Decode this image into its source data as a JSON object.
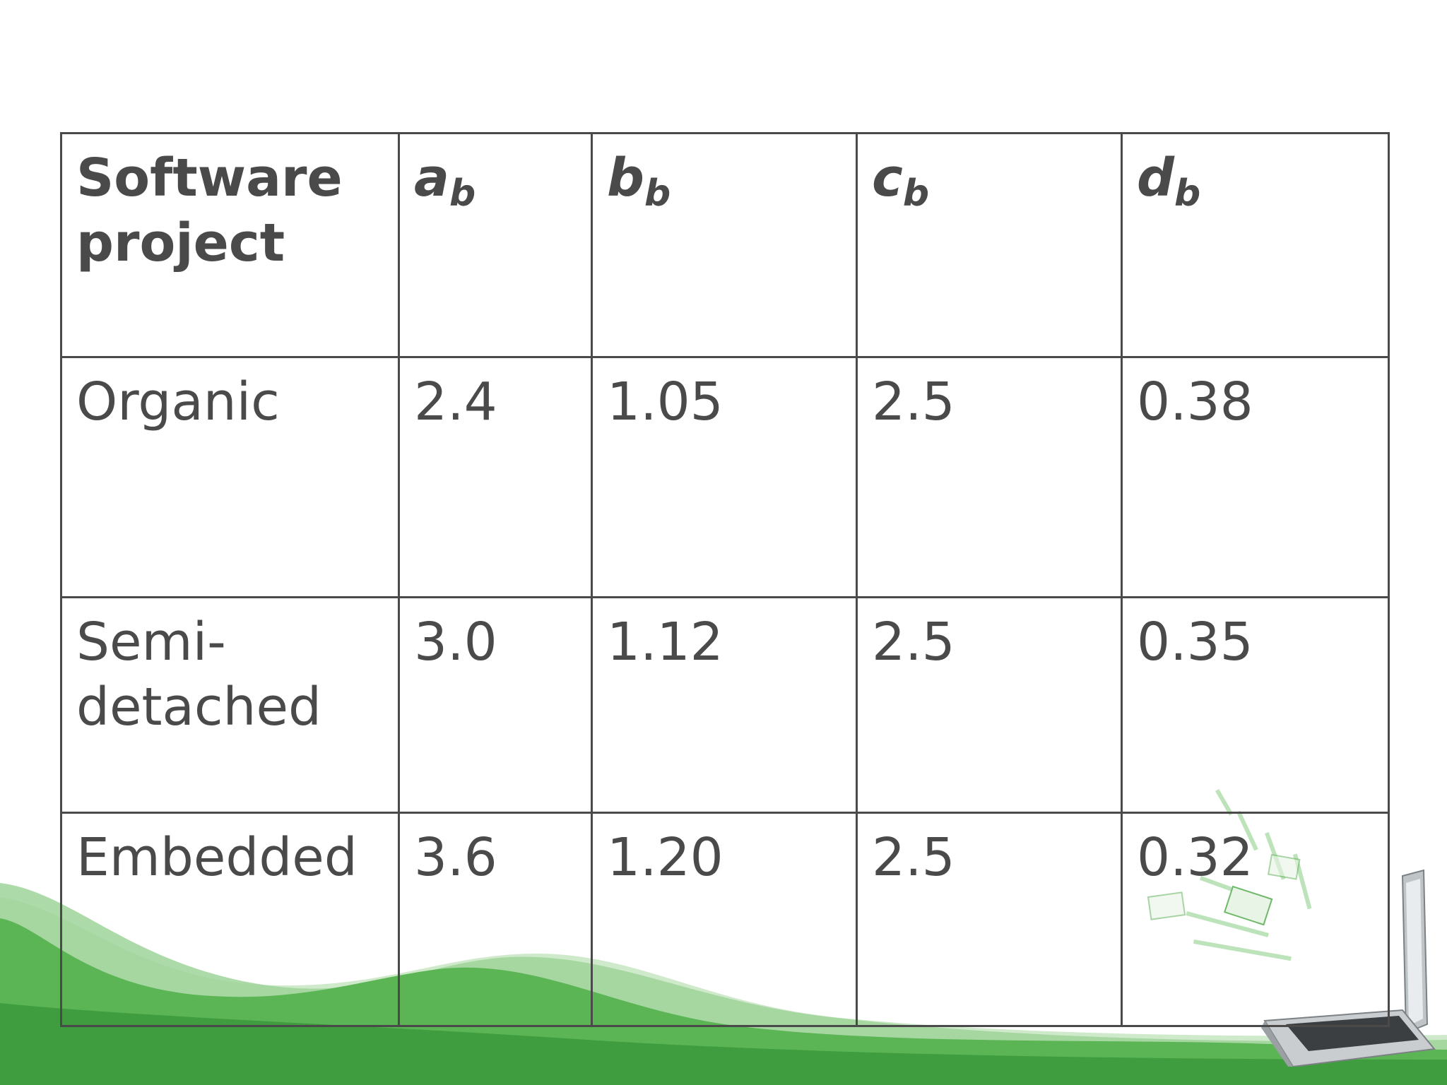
{
  "table": {
    "header": {
      "project_label": "Software project",
      "columns": [
        {
          "symbol": "a",
          "subscript": "b"
        },
        {
          "symbol": "b",
          "subscript": "b"
        },
        {
          "symbol": "c",
          "subscript": "b"
        },
        {
          "symbol": "d",
          "subscript": "b"
        }
      ]
    },
    "rows": [
      {
        "name": "Organic",
        "values": [
          "2.4",
          "1.05",
          "2.5",
          "0.38"
        ]
      },
      {
        "name": "Semi-detached",
        "values": [
          "3.0",
          "1.12",
          "2.5",
          "0.35"
        ]
      },
      {
        "name": "Embedded",
        "values": [
          "3.6",
          "1.20",
          "2.5",
          "0.32"
        ]
      }
    ]
  },
  "theme": {
    "text_color": "#4a4a4a",
    "wave_dark": "#4aa84a",
    "wave_light": "#9fd49a"
  }
}
